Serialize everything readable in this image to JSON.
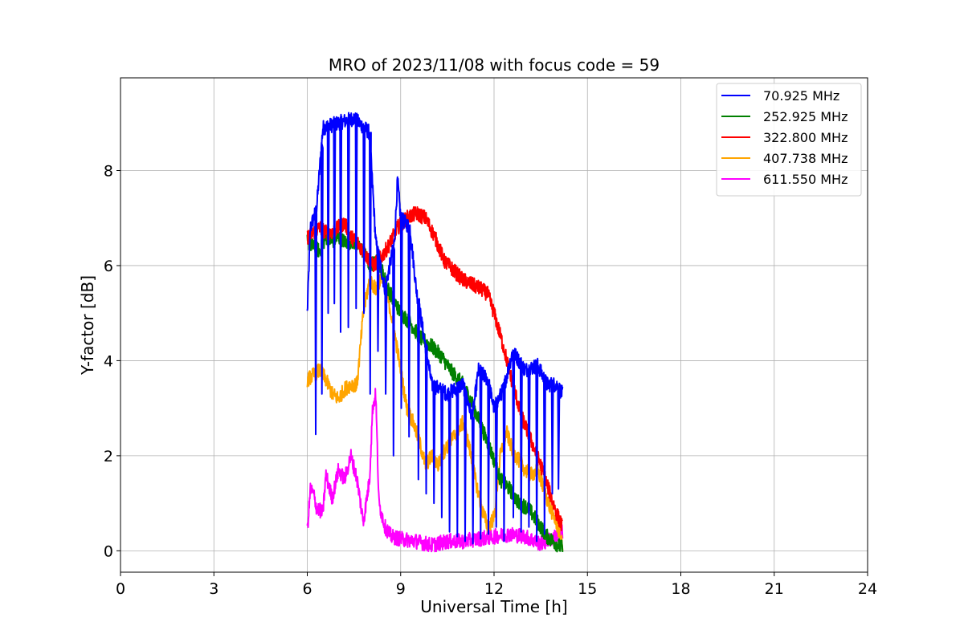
{
  "chart_data": {
    "type": "line",
    "title": "MRO of 2023/11/08 with focus code = 59",
    "xlabel": "Universal Time [h]",
    "ylabel": "Y-factor [dB]",
    "xlim": [
      0,
      24
    ],
    "ylim": [
      -0.45,
      9.95
    ],
    "xticks": [
      0,
      3,
      6,
      9,
      12,
      15,
      18,
      21,
      24
    ],
    "yticks": [
      0,
      2,
      4,
      6,
      8
    ],
    "grid": true,
    "legend_position": "top-right",
    "series": [
      {
        "name": " 70.925 MHz",
        "color": "#0000ff",
        "points": [
          [
            6.0,
            5.0
          ],
          [
            6.1,
            6.8
          ],
          [
            6.3,
            7.2
          ],
          [
            6.5,
            8.9
          ],
          [
            7.0,
            9.0
          ],
          [
            7.5,
            9.1
          ],
          [
            8.0,
            8.8
          ],
          [
            8.2,
            6.5
          ],
          [
            8.5,
            5.5
          ],
          [
            8.8,
            6.5
          ],
          [
            8.9,
            7.8
          ],
          [
            9.0,
            7.0
          ],
          [
            9.3,
            6.8
          ],
          [
            9.5,
            5.5
          ],
          [
            10.0,
            3.5
          ],
          [
            10.5,
            3.3
          ],
          [
            11.0,
            3.5
          ],
          [
            11.3,
            2.8
          ],
          [
            11.5,
            3.8
          ],
          [
            11.8,
            3.6
          ],
          [
            12.0,
            3.0
          ],
          [
            12.3,
            3.4
          ],
          [
            12.6,
            4.2
          ],
          [
            13.0,
            3.8
          ],
          [
            13.4,
            3.9
          ],
          [
            13.7,
            3.5
          ],
          [
            14.0,
            3.5
          ],
          [
            14.2,
            3.3
          ]
        ],
        "dips": [
          [
            6.25,
            2.45
          ],
          [
            6.45,
            3.3
          ],
          [
            6.65,
            5.0
          ],
          [
            6.85,
            5.2
          ],
          [
            7.05,
            4.6
          ],
          [
            7.3,
            4.7
          ],
          [
            7.55,
            5.1
          ],
          [
            7.8,
            5.0
          ],
          [
            8.0,
            3.3
          ],
          [
            8.25,
            4.2
          ],
          [
            8.5,
            3.3
          ],
          [
            8.75,
            2.0
          ],
          [
            9.0,
            3.0
          ],
          [
            9.25,
            2.4
          ],
          [
            9.55,
            1.5
          ],
          [
            9.8,
            1.2
          ],
          [
            10.05,
            1.0
          ],
          [
            10.3,
            0.7
          ],
          [
            10.55,
            0.4
          ],
          [
            10.8,
            0.3
          ],
          [
            11.05,
            0.2
          ],
          [
            11.3,
            0.15
          ],
          [
            11.55,
            0.25
          ],
          [
            11.8,
            0.35
          ],
          [
            12.05,
            0.5
          ],
          [
            12.3,
            0.2
          ],
          [
            12.6,
            0.7
          ],
          [
            12.85,
            0.4
          ],
          [
            13.1,
            0.5
          ],
          [
            13.35,
            0.2
          ],
          [
            13.6,
            0.35
          ],
          [
            13.85,
            1.2
          ],
          [
            14.05,
            1.3
          ]
        ]
      },
      {
        "name": "252.925 MHz",
        "color": "#008000",
        "points": [
          [
            6.0,
            6.5
          ],
          [
            6.2,
            6.4
          ],
          [
            6.4,
            6.3
          ],
          [
            6.6,
            6.6
          ],
          [
            6.8,
            6.5
          ],
          [
            7.0,
            6.6
          ],
          [
            7.2,
            6.5
          ],
          [
            7.5,
            6.5
          ],
          [
            7.8,
            6.3
          ],
          [
            8.0,
            6.0
          ],
          [
            8.3,
            6.1
          ],
          [
            8.6,
            5.5
          ],
          [
            9.0,
            5.0
          ],
          [
            9.3,
            4.8
          ],
          [
            9.6,
            4.5
          ],
          [
            10.0,
            4.3
          ],
          [
            10.3,
            4.1
          ],
          [
            10.6,
            3.8
          ],
          [
            11.0,
            3.5
          ],
          [
            11.3,
            3.1
          ],
          [
            11.6,
            2.6
          ],
          [
            11.9,
            2.1
          ],
          [
            12.2,
            1.5
          ],
          [
            12.5,
            1.3
          ],
          [
            12.8,
            1.0
          ],
          [
            13.1,
            0.9
          ],
          [
            13.4,
            0.6
          ],
          [
            13.7,
            0.3
          ],
          [
            14.0,
            0.15
          ],
          [
            14.2,
            0.05
          ]
        ]
      },
      {
        "name": "322.800 MHz",
        "color": "#ff0000",
        "points": [
          [
            6.0,
            6.6
          ],
          [
            6.2,
            6.7
          ],
          [
            6.4,
            6.8
          ],
          [
            6.6,
            6.7
          ],
          [
            6.8,
            6.7
          ],
          [
            7.0,
            6.8
          ],
          [
            7.2,
            6.9
          ],
          [
            7.4,
            6.6
          ],
          [
            7.6,
            6.5
          ],
          [
            7.8,
            6.3
          ],
          [
            8.1,
            6.0
          ],
          [
            8.3,
            6.1
          ],
          [
            8.6,
            6.4
          ],
          [
            8.9,
            6.8
          ],
          [
            9.2,
            7.0
          ],
          [
            9.5,
            7.1
          ],
          [
            9.8,
            7.0
          ],
          [
            10.1,
            6.6
          ],
          [
            10.4,
            6.1
          ],
          [
            10.7,
            5.9
          ],
          [
            11.0,
            5.7
          ],
          [
            11.3,
            5.6
          ],
          [
            11.6,
            5.5
          ],
          [
            11.8,
            5.4
          ],
          [
            12.0,
            5.0
          ],
          [
            12.3,
            4.3
          ],
          [
            12.6,
            3.5
          ],
          [
            12.9,
            2.8
          ],
          [
            13.2,
            2.3
          ],
          [
            13.5,
            1.8
          ],
          [
            13.8,
            1.2
          ],
          [
            14.0,
            0.8
          ],
          [
            14.2,
            0.5
          ]
        ]
      },
      {
        "name": "407.738 MHz",
        "color": "#ffa500",
        "points": [
          [
            6.0,
            3.6
          ],
          [
            6.2,
            3.7
          ],
          [
            6.4,
            3.8
          ],
          [
            6.6,
            3.6
          ],
          [
            6.8,
            3.3
          ],
          [
            7.0,
            3.2
          ],
          [
            7.2,
            3.4
          ],
          [
            7.4,
            3.5
          ],
          [
            7.6,
            3.5
          ],
          [
            7.8,
            5.0
          ],
          [
            8.0,
            5.7
          ],
          [
            8.2,
            5.5
          ],
          [
            8.4,
            5.8
          ],
          [
            8.6,
            5.3
          ],
          [
            8.8,
            4.6
          ],
          [
            9.0,
            3.8
          ],
          [
            9.2,
            3.0
          ],
          [
            9.4,
            2.7
          ],
          [
            9.6,
            2.3
          ],
          [
            9.8,
            1.8
          ],
          [
            10.0,
            2.0
          ],
          [
            10.2,
            1.8
          ],
          [
            10.4,
            2.1
          ],
          [
            10.6,
            2.3
          ],
          [
            10.8,
            2.5
          ],
          [
            11.0,
            2.7
          ],
          [
            11.2,
            2.2
          ],
          [
            11.4,
            1.5
          ],
          [
            11.6,
            0.9
          ],
          [
            11.8,
            0.5
          ],
          [
            12.0,
            0.7
          ],
          [
            12.2,
            2.0
          ],
          [
            12.4,
            2.5
          ],
          [
            12.6,
            2.1
          ],
          [
            12.8,
            1.9
          ],
          [
            13.0,
            1.7
          ],
          [
            13.2,
            1.6
          ],
          [
            13.4,
            1.7
          ],
          [
            13.6,
            1.3
          ],
          [
            13.8,
            0.9
          ],
          [
            14.0,
            0.6
          ],
          [
            14.2,
            0.1
          ]
        ]
      },
      {
        "name": "611.550 MHz",
        "color": "#ff00ff",
        "points": [
          [
            6.0,
            0.4
          ],
          [
            6.1,
            1.3
          ],
          [
            6.2,
            1.2
          ],
          [
            6.3,
            0.9
          ],
          [
            6.5,
            0.8
          ],
          [
            6.6,
            1.6
          ],
          [
            6.8,
            1.1
          ],
          [
            7.0,
            1.7
          ],
          [
            7.2,
            1.5
          ],
          [
            7.4,
            2.0
          ],
          [
            7.6,
            1.5
          ],
          [
            7.8,
            0.6
          ],
          [
            8.0,
            1.5
          ],
          [
            8.1,
            3.0
          ],
          [
            8.2,
            3.3
          ],
          [
            8.3,
            1.0
          ],
          [
            8.5,
            0.5
          ],
          [
            8.7,
            0.3
          ],
          [
            9.0,
            0.25
          ],
          [
            9.5,
            0.2
          ],
          [
            10.0,
            0.12
          ],
          [
            10.5,
            0.2
          ],
          [
            11.0,
            0.2
          ],
          [
            11.5,
            0.25
          ],
          [
            12.0,
            0.3
          ],
          [
            12.5,
            0.35
          ],
          [
            13.0,
            0.3
          ],
          [
            13.5,
            0.15
          ],
          [
            14.0,
            0.3
          ],
          [
            14.2,
            0.4
          ]
        ]
      }
    ]
  }
}
